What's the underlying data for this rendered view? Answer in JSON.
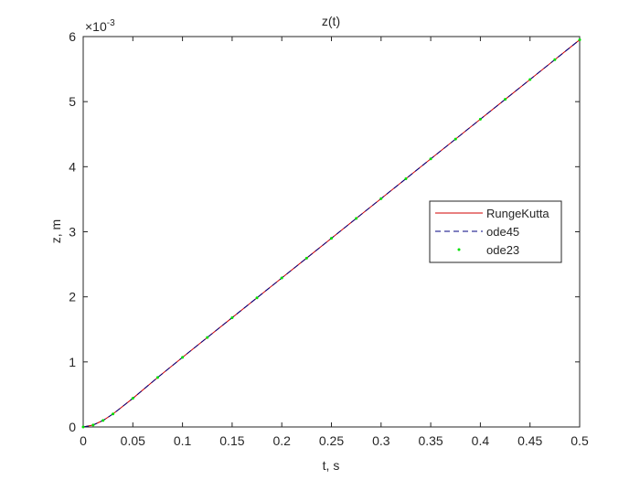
{
  "chart_data": {
    "type": "line",
    "title": "z(t)",
    "x_label": "t, s",
    "y_label": "z, m",
    "y_multiplier": {
      "base": "×10",
      "exponent": "-3"
    },
    "x": [
      0,
      0.01,
      0.02,
      0.03,
      0.05,
      0.075,
      0.1,
      0.125,
      0.15,
      0.175,
      0.2,
      0.225,
      0.25,
      0.275,
      0.3,
      0.325,
      0.35,
      0.375,
      0.4,
      0.425,
      0.45,
      0.475,
      0.5
    ],
    "series": [
      {
        "name": "RungeKutta",
        "color": "#d00000",
        "style": "solid",
        "values": [
          0,
          0.03,
          0.1,
          0.2,
          0.44,
          0.76,
          1.07,
          1.375,
          1.68,
          1.985,
          2.29,
          2.595,
          2.9,
          3.205,
          3.51,
          3.815,
          4.12,
          4.425,
          4.73,
          5.035,
          5.34,
          5.645,
          5.95
        ]
      },
      {
        "name": "ode45",
        "color": "#000080",
        "style": "dashed",
        "values": [
          0,
          0.03,
          0.1,
          0.2,
          0.44,
          0.76,
          1.07,
          1.375,
          1.68,
          1.985,
          2.29,
          2.595,
          2.9,
          3.205,
          3.51,
          3.815,
          4.12,
          4.425,
          4.73,
          5.035,
          5.34,
          5.645,
          5.95
        ]
      },
      {
        "name": "ode23",
        "color": "#00e000",
        "style": "dots",
        "values": [
          0,
          0.03,
          0.1,
          0.2,
          0.44,
          0.76,
          1.07,
          1.375,
          1.68,
          1.985,
          2.29,
          2.595,
          2.9,
          3.205,
          3.51,
          3.815,
          4.12,
          4.425,
          4.73,
          5.035,
          5.34,
          5.645,
          5.95
        ]
      }
    ],
    "xlim": [
      0,
      0.5
    ],
    "xticks": [
      0,
      0.05,
      0.1,
      0.15,
      0.2,
      0.25,
      0.3,
      0.35,
      0.4,
      0.45,
      0.5
    ],
    "ylim": [
      0,
      6
    ],
    "yticks": [
      0,
      1,
      2,
      3,
      4,
      5,
      6
    ],
    "grid": false,
    "legend": "east"
  }
}
